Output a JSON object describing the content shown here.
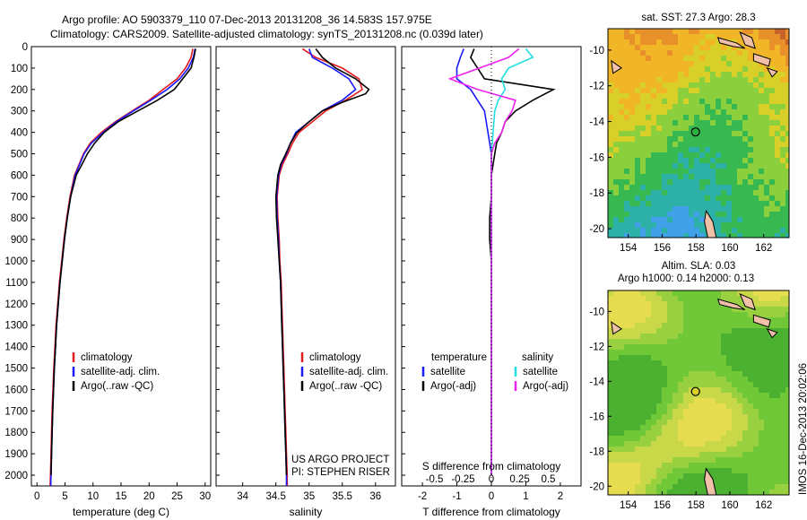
{
  "header": {
    "line1": "Argo profile: AO 5903379_110 07-Dec-2013 20131208_36 14.583S 157.975E",
    "line2": "Climatology: CARS2009. Satellite-adjusted climatology: synTS_20131208.nc (0.039d later)"
  },
  "colors": {
    "climatology": "#e41a1c",
    "satellite": "#1a1aff",
    "argo": "#000000",
    "sal_satellite": "#22dddd",
    "sal_argo": "#ee22ee"
  },
  "chart_data": [
    {
      "type": "line",
      "panel": "temperature",
      "xlabel": "temperature (deg C)",
      "ylabel": "",
      "xlim": [
        -1,
        31
      ],
      "ylim": [
        2050,
        0
      ],
      "xticks": [
        "0",
        "5",
        "10",
        "15",
        "20",
        "25",
        "30"
      ],
      "yticks": [
        "0",
        "100",
        "200",
        "300",
        "400",
        "500",
        "600",
        "700",
        "800",
        "900",
        "1000",
        "1100",
        "1200",
        "1300",
        "1400",
        "1500",
        "1600",
        "1700",
        "1800",
        "1900",
        "2000"
      ],
      "legend": [
        "climatology",
        "satellite-adj. clim.",
        "Argo(..raw -QC)"
      ],
      "series": [
        {
          "name": "climatology",
          "points": [
            [
              27.8,
              10
            ],
            [
              27.5,
              50
            ],
            [
              26.5,
              100
            ],
            [
              25,
              150
            ],
            [
              22.5,
              200
            ],
            [
              20,
              250
            ],
            [
              17,
              300
            ],
            [
              14,
              350
            ],
            [
              11.5,
              400
            ],
            [
              9.5,
              450
            ],
            [
              8.3,
              500
            ],
            [
              7.5,
              550
            ],
            [
              6.7,
              600
            ],
            [
              5.9,
              700
            ],
            [
              5.3,
              800
            ],
            [
              4.8,
              900
            ],
            [
              4.4,
              1000
            ],
            [
              4,
              1100
            ],
            [
              3.7,
              1200
            ],
            [
              3.4,
              1300
            ],
            [
              3.2,
              1400
            ],
            [
              3,
              1500
            ],
            [
              2.85,
              1600
            ],
            [
              2.7,
              1700
            ],
            [
              2.6,
              1800
            ],
            [
              2.5,
              1900
            ],
            [
              2.4,
              2000
            ],
            [
              2.35,
              2050
            ]
          ]
        },
        {
          "name": "satellite-adj. clim.",
          "points": [
            [
              28.2,
              10
            ],
            [
              27.9,
              50
            ],
            [
              27,
              100
            ],
            [
              25.5,
              150
            ],
            [
              23.2,
              200
            ],
            [
              20.3,
              250
            ],
            [
              17.2,
              300
            ],
            [
              14.2,
              350
            ],
            [
              11.8,
              400
            ],
            [
              9.7,
              450
            ],
            [
              8.4,
              500
            ],
            [
              7.6,
              550
            ],
            [
              6.8,
              600
            ],
            [
              6,
              700
            ],
            [
              5.4,
              800
            ],
            [
              4.9,
              900
            ],
            [
              4.5,
              1000
            ],
            [
              4.1,
              1100
            ],
            [
              3.8,
              1200
            ],
            [
              3.5,
              1300
            ],
            [
              3.3,
              1400
            ],
            [
              3.1,
              1500
            ],
            [
              2.95,
              1600
            ],
            [
              2.8,
              1700
            ],
            [
              2.7,
              1800
            ],
            [
              2.6,
              1900
            ],
            [
              2.5,
              2000
            ],
            [
              2.45,
              2050
            ]
          ]
        },
        {
          "name": "Argo(..raw -QC)",
          "points": [
            [
              28.3,
              10
            ],
            [
              28,
              50
            ],
            [
              27.5,
              100
            ],
            [
              26,
              150
            ],
            [
              24.5,
              200
            ],
            [
              21.5,
              250
            ],
            [
              18,
              300
            ],
            [
              14.5,
              350
            ],
            [
              12,
              400
            ],
            [
              10.3,
              450
            ],
            [
              9,
              500
            ],
            [
              8,
              550
            ],
            [
              7,
              600
            ],
            [
              6,
              700
            ],
            [
              5.4,
              800
            ],
            [
              4.9,
              900
            ],
            [
              4.5,
              1000
            ],
            [
              4.1,
              1100
            ],
            [
              3.8,
              1200
            ],
            [
              3.5,
              1300
            ],
            [
              3.3,
              1400
            ],
            [
              3.1,
              1500
            ],
            [
              2.95,
              1600
            ],
            [
              2.8,
              1700
            ],
            [
              2.7,
              1800
            ],
            [
              2.6,
              1900
            ],
            [
              2.5,
              2000
            ]
          ]
        }
      ]
    },
    {
      "type": "line",
      "panel": "salinity",
      "xlabel": "salinity",
      "xlim": [
        33.6,
        36.3
      ],
      "ylim": [
        2050,
        0
      ],
      "xticks": [
        "34",
        "34.5",
        "35",
        "35.5",
        "36"
      ],
      "legend": [
        "climatology",
        "satellite-adj. clim.",
        "Argo(..raw -QC)"
      ],
      "annotation": [
        "US ARGO PROJECT",
        "PI: STEPHEN RISER"
      ],
      "series": [
        {
          "name": "climatology",
          "points": [
            [
              34.9,
              10
            ],
            [
              35.1,
              50
            ],
            [
              35.5,
              100
            ],
            [
              35.75,
              150
            ],
            [
              35.8,
              200
            ],
            [
              35.55,
              250
            ],
            [
              35.25,
              300
            ],
            [
              35.05,
              350
            ],
            [
              34.85,
              400
            ],
            [
              34.75,
              450
            ],
            [
              34.68,
              500
            ],
            [
              34.6,
              550
            ],
            [
              34.55,
              600
            ],
            [
              34.52,
              700
            ],
            [
              34.53,
              800
            ],
            [
              34.55,
              900
            ],
            [
              34.56,
              1000
            ],
            [
              34.58,
              1100
            ],
            [
              34.59,
              1200
            ],
            [
              34.6,
              1300
            ],
            [
              34.61,
              1400
            ],
            [
              34.62,
              1500
            ],
            [
              34.63,
              1600
            ],
            [
              34.64,
              1700
            ],
            [
              34.65,
              1800
            ],
            [
              34.66,
              1900
            ],
            [
              34.67,
              2000
            ],
            [
              34.67,
              2050
            ]
          ]
        },
        {
          "name": "satellite-adj. clim.",
          "points": [
            [
              35.0,
              10
            ],
            [
              35.05,
              50
            ],
            [
              35.35,
              100
            ],
            [
              35.6,
              150
            ],
            [
              35.7,
              200
            ],
            [
              35.5,
              250
            ],
            [
              35.2,
              300
            ],
            [
              35.0,
              350
            ],
            [
              34.8,
              400
            ],
            [
              34.72,
              450
            ],
            [
              34.66,
              500
            ],
            [
              34.58,
              550
            ],
            [
              34.54,
              600
            ],
            [
              34.51,
              700
            ],
            [
              34.52,
              800
            ],
            [
              34.54,
              900
            ],
            [
              34.55,
              1000
            ],
            [
              34.57,
              1100
            ],
            [
              34.58,
              1200
            ],
            [
              34.59,
              1300
            ],
            [
              34.6,
              1400
            ],
            [
              34.61,
              1500
            ],
            [
              34.62,
              1600
            ],
            [
              34.63,
              1700
            ],
            [
              34.64,
              1800
            ],
            [
              34.65,
              1900
            ],
            [
              34.66,
              2000
            ],
            [
              34.66,
              2050
            ]
          ]
        },
        {
          "name": "Argo(..raw -QC)",
          "points": [
            [
              35.1,
              10
            ],
            [
              35.2,
              50
            ],
            [
              35.4,
              100
            ],
            [
              35.7,
              150
            ],
            [
              35.9,
              200
            ],
            [
              35.85,
              220
            ],
            [
              35.5,
              260
            ],
            [
              35.2,
              300
            ],
            [
              35.0,
              350
            ],
            [
              34.82,
              400
            ],
            [
              34.72,
              450
            ],
            [
              34.65,
              500
            ],
            [
              34.57,
              550
            ],
            [
              34.53,
              600
            ],
            [
              34.5,
              700
            ],
            [
              34.51,
              800
            ],
            [
              34.53,
              900
            ],
            [
              34.55,
              1000
            ],
            [
              34.57,
              1100
            ],
            [
              34.58,
              1200
            ],
            [
              34.59,
              1300
            ],
            [
              34.6,
              1400
            ],
            [
              34.61,
              1500
            ],
            [
              34.62,
              1600
            ],
            [
              34.63,
              1700
            ],
            [
              34.64,
              1800
            ],
            [
              34.65,
              1900
            ],
            [
              34.66,
              2000
            ]
          ]
        }
      ]
    },
    {
      "type": "line",
      "panel": "difference",
      "xlabel": "T difference from climatology",
      "xlabel_top": "S difference from climatology",
      "xlim": [
        -2.6,
        2.6
      ],
      "ylim": [
        2050,
        0
      ],
      "xticks": [
        "-2",
        "-1",
        "0",
        "1",
        "2"
      ],
      "xticks_top": [
        "-0.5",
        "-0.25",
        "0",
        "0.25",
        "0.5"
      ],
      "legend_left": {
        "title": "temperature",
        "items": [
          "satellite",
          "Argo(-adj)"
        ]
      },
      "legend_right": {
        "title": "salinity",
        "items": [
          "satellite",
          "Argo(-adj)"
        ]
      },
      "series": [
        {
          "name": "temperature satellite",
          "points": [
            [
              -0.8,
              10
            ],
            [
              -0.9,
              50
            ],
            [
              -1.0,
              100
            ],
            [
              -1.0,
              150
            ],
            [
              -0.6,
              200
            ],
            [
              -0.4,
              250
            ],
            [
              -0.2,
              300
            ],
            [
              -0.1,
              400
            ],
            [
              0,
              500
            ],
            [
              0,
              700
            ],
            [
              0,
              1000
            ],
            [
              0,
              1500
            ],
            [
              0,
              2000
            ]
          ]
        },
        {
          "name": "temperature Argo(-adj)",
          "points": [
            [
              -0.5,
              10
            ],
            [
              -0.6,
              50
            ],
            [
              -0.4,
              100
            ],
            [
              -0.2,
              150
            ],
            [
              1.8,
              200
            ],
            [
              1.2,
              250
            ],
            [
              0.7,
              300
            ],
            [
              0.4,
              350
            ],
            [
              0.3,
              400
            ],
            [
              0.15,
              450
            ],
            [
              0.1,
              500
            ],
            [
              0,
              600
            ],
            [
              0,
              700
            ],
            [
              -0.05,
              800
            ],
            [
              -0.05,
              900
            ],
            [
              0,
              1000
            ],
            [
              0,
              1500
            ],
            [
              0,
              2000
            ]
          ]
        },
        {
          "name": "salinity satellite",
          "points": [
            [
              1.0,
              10
            ],
            [
              1.2,
              50
            ],
            [
              0.5,
              100
            ],
            [
              0.3,
              150
            ],
            [
              0.4,
              200
            ],
            [
              0.2,
              250
            ],
            [
              0.1,
              300
            ],
            [
              0.05,
              400
            ],
            [
              0,
              500
            ],
            [
              0,
              1000
            ],
            [
              0,
              1500
            ],
            [
              0,
              2000
            ]
          ]
        },
        {
          "name": "salinity Argo(-adj)",
          "points": [
            [
              0.8,
              10
            ],
            [
              0.5,
              50
            ],
            [
              -1.2,
              150
            ],
            [
              -0.4,
              200
            ],
            [
              0.7,
              250
            ],
            [
              0.6,
              300
            ],
            [
              0.4,
              350
            ],
            [
              0.3,
              400
            ],
            [
              0.1,
              450
            ],
            [
              0,
              500
            ],
            [
              0,
              700
            ],
            [
              0,
              1000
            ],
            [
              0,
              1500
            ],
            [
              0,
              2000
            ]
          ]
        }
      ]
    },
    {
      "type": "heatmap",
      "panel": "sst-map",
      "title": "sat. SST: 27.3 Argo: 28.3",
      "xlim": [
        152.8,
        163.5
      ],
      "ylim": [
        -20.5,
        -8.8
      ],
      "xticks": [
        "154",
        "156",
        "158",
        "160",
        "162"
      ],
      "yticks": [
        "-10",
        "-12",
        "-14",
        "-16",
        "-18",
        "-20"
      ],
      "marker": [
        157.975,
        -14.583
      ]
    },
    {
      "type": "heatmap",
      "panel": "sla-map",
      "title_line1": "Altim. SLA: 0.03",
      "title_line2": "Argo h1000: 0.14 h2000: 0.13",
      "xlim": [
        152.8,
        163.5
      ],
      "ylim": [
        -20.5,
        -8.8
      ],
      "xticks": [
        "154",
        "156",
        "158",
        "160",
        "162"
      ],
      "yticks": [
        "-10",
        "-12",
        "-14",
        "-16",
        "-18",
        "-20"
      ],
      "marker": [
        157.975,
        -14.583
      ]
    }
  ],
  "footer_side": "IMOS 16-Dec-2013 20:02:06"
}
